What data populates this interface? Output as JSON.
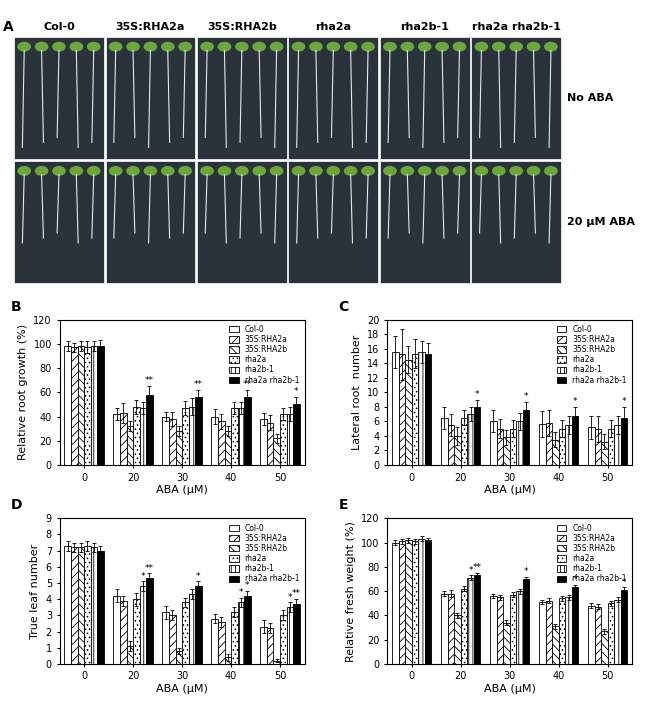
{
  "photo_panel": {
    "label": "A",
    "genotypes": [
      "Col-0",
      "35S:RHA2a",
      "35S:RHA2b",
      "rha2a",
      "rha2b-1",
      "rha2a rha2b-1"
    ],
    "conditions": [
      "No ABA",
      "20 μM ABA"
    ]
  },
  "chart_data": [
    {
      "type": "bar",
      "title": "B",
      "x_label": "ABA (μM)",
      "y_label": "Relative root growth (%)",
      "categories": [
        "0",
        "20",
        "30",
        "40",
        "50"
      ],
      "ylim": [
        0,
        120
      ],
      "yticks": [
        0,
        20,
        40,
        60,
        80,
        100,
        120
      ],
      "legend": "upper right",
      "series": [
        {
          "name": "Col-0",
          "color": "#ffffff",
          "values": [
            98,
            42,
            40,
            40,
            38
          ],
          "errors": [
            4,
            5,
            4,
            6,
            5
          ],
          "significance": [
            null,
            null,
            null,
            null,
            null
          ]
        },
        {
          "name": "35S:RHA2a",
          "color": "#ffffff",
          "values": [
            97,
            43,
            38,
            36,
            35
          ],
          "errors": [
            4,
            8,
            6,
            6,
            6
          ],
          "significance": [
            null,
            null,
            null,
            null,
            null
          ]
        },
        {
          "name": "35S:RHA2b",
          "color": "#ffffff",
          "values": [
            98,
            32,
            28,
            28,
            22
          ],
          "errors": [
            4,
            4,
            4,
            4,
            4
          ],
          "significance": [
            null,
            null,
            null,
            null,
            null
          ]
        },
        {
          "name": "rha2a",
          "color": "#ffffff",
          "values": [
            97,
            48,
            47,
            47,
            42
          ],
          "errors": [
            5,
            6,
            6,
            5,
            5
          ],
          "significance": [
            null,
            null,
            null,
            null,
            null
          ]
        },
        {
          "name": "rha2b-1",
          "color": "#ffffff",
          "values": [
            98,
            47,
            48,
            47,
            42
          ],
          "errors": [
            4,
            5,
            7,
            5,
            6
          ],
          "significance": [
            null,
            null,
            null,
            null,
            null
          ]
        },
        {
          "name": "rha2a rha2b-1",
          "color": "#000000",
          "values": [
            98,
            58,
            56,
            56,
            50
          ],
          "errors": [
            5,
            7,
            6,
            6,
            6
          ],
          "significance": [
            null,
            "**",
            "**",
            "**",
            "*"
          ]
        }
      ]
    },
    {
      "type": "bar",
      "title": "C",
      "x_label": "ABA (μM)",
      "y_label": "Lateral root  number",
      "categories": [
        "0",
        "20",
        "30",
        "40",
        "50"
      ],
      "ylim": [
        0,
        20
      ],
      "yticks": [
        0,
        2,
        4,
        6,
        8,
        10,
        12,
        14,
        16,
        18,
        20
      ],
      "legend": "upper right",
      "series": [
        {
          "name": "Col-0",
          "color": "#ffffff",
          "values": [
            15.5,
            6.5,
            6.0,
            5.6,
            5.2
          ],
          "errors": [
            2.2,
            1.5,
            1.5,
            1.8,
            1.6
          ],
          "significance": [
            null,
            null,
            null,
            null,
            null
          ]
        },
        {
          "name": "35S:RHA2a",
          "color": "#ffffff",
          "values": [
            15.2,
            5.5,
            5.0,
            5.8,
            5.0
          ],
          "errors": [
            3.5,
            1.5,
            1.3,
            1.8,
            1.8
          ],
          "significance": [
            null,
            null,
            null,
            null,
            null
          ]
        },
        {
          "name": "35S:RHA2b",
          "color": "#ffffff",
          "values": [
            14.5,
            4.0,
            3.8,
            3.5,
            3.2
          ],
          "errors": [
            1.8,
            1.2,
            1.0,
            1.0,
            1.0
          ],
          "significance": [
            null,
            null,
            null,
            null,
            null
          ]
        },
        {
          "name": "rha2a",
          "color": "#ffffff",
          "values": [
            15.3,
            6.5,
            5.0,
            5.0,
            5.0
          ],
          "errors": [
            2.0,
            1.0,
            1.2,
            1.2,
            1.2
          ],
          "significance": [
            null,
            null,
            null,
            null,
            null
          ]
        },
        {
          "name": "rha2b-1",
          "color": "#ffffff",
          "values": [
            15.5,
            7.0,
            6.0,
            5.5,
            5.5
          ],
          "errors": [
            1.5,
            1.0,
            1.2,
            1.2,
            1.2
          ],
          "significance": [
            null,
            null,
            null,
            null,
            null
          ]
        },
        {
          "name": "rha2a rha2b-1",
          "color": "#000000",
          "values": [
            15.3,
            8.0,
            7.5,
            6.8,
            6.5
          ],
          "errors": [
            1.5,
            1.0,
            1.2,
            1.2,
            1.5
          ],
          "significance": [
            null,
            "*",
            "*",
            "*",
            "*"
          ]
        }
      ]
    },
    {
      "type": "bar",
      "title": "D",
      "x_label": "ABA (μM)",
      "y_label": "True leaf number",
      "categories": [
        "0",
        "20",
        "30",
        "40",
        "50"
      ],
      "ylim": [
        0,
        9
      ],
      "yticks": [
        0,
        1,
        2,
        3,
        4,
        5,
        6,
        7,
        8,
        9
      ],
      "legend": "upper right",
      "series": [
        {
          "name": "Col-0",
          "color": "#ffffff",
          "values": [
            7.3,
            4.2,
            3.2,
            2.8,
            2.3
          ],
          "errors": [
            0.3,
            0.4,
            0.4,
            0.3,
            0.4
          ],
          "significance": [
            null,
            null,
            null,
            null,
            null
          ]
        },
        {
          "name": "35S:RHA2a",
          "color": "#ffffff",
          "values": [
            7.2,
            3.9,
            3.0,
            2.6,
            2.2
          ],
          "errors": [
            0.3,
            0.3,
            0.3,
            0.3,
            0.3
          ],
          "significance": [
            null,
            null,
            null,
            null,
            null
          ]
        },
        {
          "name": "35S:RHA2b",
          "color": "#ffffff",
          "values": [
            7.2,
            1.1,
            0.8,
            0.4,
            0.2
          ],
          "errors": [
            0.3,
            0.3,
            0.2,
            0.2,
            0.1
          ],
          "significance": [
            null,
            null,
            null,
            null,
            null
          ]
        },
        {
          "name": "rha2a",
          "color": "#ffffff",
          "values": [
            7.3,
            4.0,
            3.8,
            3.2,
            3.0
          ],
          "errors": [
            0.3,
            0.4,
            0.3,
            0.3,
            0.3
          ],
          "significance": [
            null,
            null,
            null,
            null,
            null
          ]
        },
        {
          "name": "rha2b-1",
          "color": "#ffffff",
          "values": [
            7.2,
            4.8,
            4.3,
            3.8,
            3.5
          ],
          "errors": [
            0.3,
            0.3,
            0.3,
            0.3,
            0.3
          ],
          "significance": [
            null,
            "*",
            null,
            "*",
            "*"
          ]
        },
        {
          "name": "rha2a rha2b-1",
          "color": "#000000",
          "values": [
            7.0,
            5.3,
            4.8,
            4.2,
            3.7
          ],
          "errors": [
            0.3,
            0.3,
            0.3,
            0.3,
            0.3
          ],
          "significance": [
            null,
            "**",
            "*",
            "*",
            "**"
          ]
        }
      ]
    },
    {
      "type": "bar",
      "title": "E",
      "x_label": "ABA (μM)",
      "y_label": "Relative fresh weight (%)",
      "categories": [
        "0",
        "20",
        "30",
        "40",
        "50"
      ],
      "ylim": [
        0,
        120
      ],
      "yticks": [
        0,
        20,
        40,
        60,
        80,
        100,
        120
      ],
      "legend": "upper right",
      "series": [
        {
          "name": "Col-0",
          "color": "#ffffff",
          "values": [
            100,
            58,
            56,
            51,
            48
          ],
          "errors": [
            2,
            2,
            2,
            2,
            2
          ],
          "significance": [
            null,
            null,
            null,
            null,
            null
          ]
        },
        {
          "name": "35S:RHA2a",
          "color": "#ffffff",
          "values": [
            101,
            58,
            55,
            52,
            47
          ],
          "errors": [
            2,
            3,
            2,
            2,
            2
          ],
          "significance": [
            null,
            null,
            null,
            null,
            null
          ]
        },
        {
          "name": "35S:RHA2b",
          "color": "#ffffff",
          "values": [
            102,
            40,
            34,
            31,
            27
          ],
          "errors": [
            2,
            2,
            2,
            2,
            2
          ],
          "significance": [
            null,
            null,
            null,
            null,
            null
          ]
        },
        {
          "name": "rha2a",
          "color": "#ffffff",
          "values": [
            101,
            62,
            57,
            54,
            50
          ],
          "errors": [
            2,
            2,
            2,
            2,
            2
          ],
          "significance": [
            null,
            null,
            null,
            null,
            null
          ]
        },
        {
          "name": "rha2b-1",
          "color": "#ffffff",
          "values": [
            103,
            71,
            60,
            55,
            53
          ],
          "errors": [
            2,
            2,
            2,
            2,
            2
          ],
          "significance": [
            null,
            "*",
            null,
            null,
            null
          ]
        },
        {
          "name": "rha2a rha2b-1",
          "color": "#000000",
          "values": [
            102,
            73,
            70,
            63,
            61
          ],
          "errors": [
            2,
            2,
            2,
            2,
            2
          ],
          "significance": [
            null,
            "**",
            "*",
            "*",
            "*"
          ]
        }
      ]
    }
  ]
}
